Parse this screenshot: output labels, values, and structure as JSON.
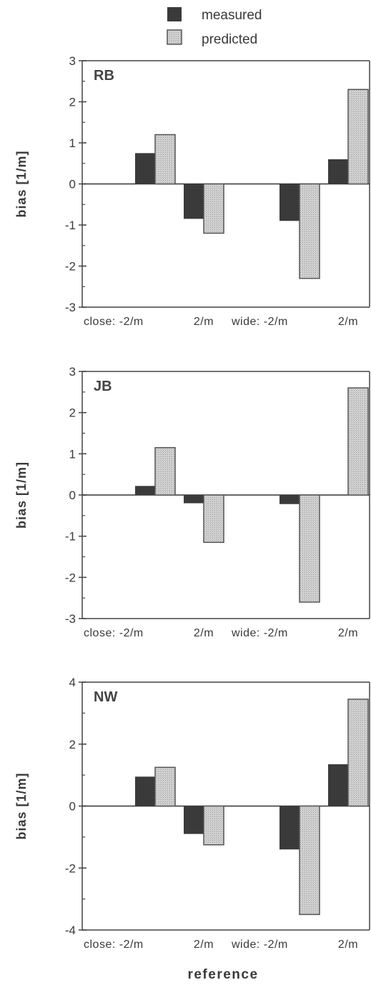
{
  "legend": {
    "measured": "measured",
    "predicted": "predicted"
  },
  "colors": {
    "measured": "#3a3a3a",
    "predicted": "#cfcfcf"
  },
  "xlabel": "reference",
  "chart_data": [
    {
      "type": "bar",
      "panel": "RB",
      "ylabel": "bias [1/m]",
      "categories": [
        "close: -2/m",
        "2/m",
        "wide: -2/m",
        "2/m"
      ],
      "series": [
        {
          "name": "measured",
          "values": [
            0.75,
            -0.85,
            -0.9,
            0.6
          ]
        },
        {
          "name": "predicted",
          "values": [
            1.2,
            -1.2,
            -2.3,
            2.3
          ]
        }
      ],
      "ylim": [
        -3,
        3
      ],
      "yticks": [
        "3",
        "2",
        "1",
        "0",
        "-1",
        "-2",
        "-3"
      ],
      "yticks_values": [
        3,
        2,
        1,
        0,
        -1,
        -2,
        -3
      ]
    },
    {
      "type": "bar",
      "panel": "JB",
      "ylabel": "bias [1/m]",
      "categories": [
        "close: -2/m",
        "2/m",
        "wide: -2/m",
        "2/m"
      ],
      "series": [
        {
          "name": "measured",
          "values": [
            0.22,
            -0.2,
            -0.22,
            0.0
          ]
        },
        {
          "name": "predicted",
          "values": [
            1.15,
            -1.15,
            -2.6,
            2.6
          ]
        }
      ],
      "ylim": [
        -3,
        3
      ],
      "yticks": [
        "3",
        "2",
        "1",
        "0",
        "-1",
        "-2",
        "-3"
      ],
      "yticks_values": [
        3,
        2,
        1,
        0,
        -1,
        -2,
        -3
      ]
    },
    {
      "type": "bar",
      "panel": "NW",
      "ylabel": "bias [1/m]",
      "categories": [
        "close: -2/m",
        "2/m",
        "wide: -2/m",
        "2/m"
      ],
      "series": [
        {
          "name": "measured",
          "values": [
            0.95,
            -0.9,
            -1.4,
            1.35
          ]
        },
        {
          "name": "predicted",
          "values": [
            1.25,
            -1.25,
            -3.5,
            3.45
          ]
        }
      ],
      "ylim": [
        -4,
        4
      ],
      "yticks": [
        "4",
        "2",
        "0",
        "-2",
        "-4"
      ],
      "yticks_values": [
        4,
        2,
        0,
        -2,
        -4
      ]
    }
  ]
}
